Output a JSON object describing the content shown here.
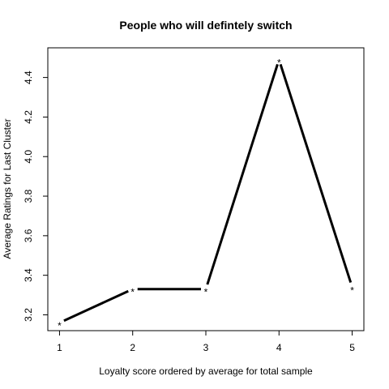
{
  "chart_data": {
    "type": "line",
    "title": "People who will defintely switch",
    "xlabel": "Loyalty score ordered by average for total sample",
    "ylabel": "Average Ratings for Last Cluster",
    "x": [
      1,
      2,
      3,
      4,
      5
    ],
    "y": [
      3.16,
      3.33,
      3.33,
      4.49,
      3.34
    ],
    "xlim": [
      0.84,
      5.16
    ],
    "ylim": [
      3.12,
      4.55
    ],
    "xticks": [
      1,
      2,
      3,
      4,
      5
    ],
    "yticks": [
      3.2,
      3.4,
      3.6,
      3.8,
      4.0,
      4.2,
      4.4
    ],
    "point_marker": "*",
    "line_color": "#000000",
    "grid": false
  }
}
